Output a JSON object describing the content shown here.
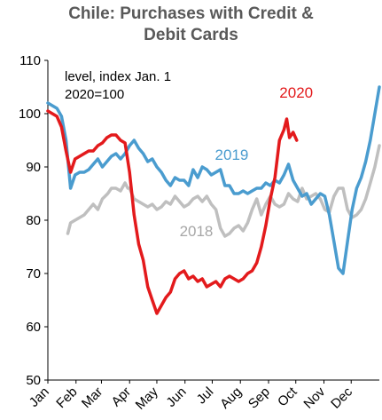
{
  "chart_data": {
    "type": "line",
    "title_lines": [
      "Chile: Purchases with Credit &",
      "Debit Cards"
    ],
    "annotation_lines": [
      "level, index Jan. 1",
      "2020=100"
    ],
    "ylim": [
      50,
      110
    ],
    "yticks": [
      50,
      60,
      70,
      80,
      90,
      100,
      110
    ],
    "xlim": [
      0,
      365
    ],
    "categories": [
      "Jan",
      "Feb",
      "Mar",
      "Apr",
      "May",
      "Jun",
      "Jul",
      "Aug",
      "Sep",
      "Oct",
      "Nov",
      "Dec"
    ],
    "month_start_days": [
      0,
      31,
      59,
      90,
      120,
      151,
      181,
      212,
      243,
      273,
      304,
      334
    ],
    "series": [
      {
        "name": "2018",
        "color": "#bfbfbf",
        "x": [
          22,
          25,
          30,
          35,
          40,
          45,
          50,
          55,
          60,
          63,
          66,
          70,
          75,
          80,
          85,
          88,
          90,
          95,
          100,
          105,
          110,
          115,
          120,
          125,
          130,
          135,
          140,
          145,
          150,
          155,
          160,
          165,
          170,
          175,
          180,
          185,
          190,
          195,
          200,
          205,
          210,
          215,
          220,
          225,
          230,
          235,
          240,
          245,
          250,
          255,
          260,
          265,
          270,
          275,
          280,
          285,
          290,
          295,
          300,
          305,
          310,
          315,
          320,
          325,
          330,
          335,
          340,
          345,
          350,
          355,
          360,
          365
        ],
        "y": [
          77.5,
          79.5,
          80,
          80.5,
          81,
          82,
          83,
          82,
          84,
          84.5,
          85,
          86,
          86,
          85.5,
          87,
          86,
          86,
          84,
          83.5,
          83,
          82.5,
          83,
          82,
          82.5,
          83.5,
          83,
          84.5,
          83.5,
          82.5,
          83,
          84,
          84.5,
          83.5,
          84.5,
          83,
          82,
          78.5,
          77,
          77.5,
          78.5,
          79,
          78,
          79.5,
          82,
          84,
          81,
          83,
          84.5,
          83,
          82.5,
          83,
          85,
          84,
          83.5,
          86,
          84,
          84.5,
          85,
          84,
          82,
          81.5,
          84.5,
          86,
          86,
          82,
          80.5,
          81,
          82,
          84,
          87,
          90,
          94
        ]
      },
      {
        "name": "2019",
        "color": "#4a9ccf",
        "x": [
          0,
          5,
          10,
          15,
          20,
          25,
          30,
          35,
          40,
          45,
          50,
          55,
          60,
          65,
          70,
          75,
          80,
          85,
          90,
          95,
          100,
          105,
          110,
          115,
          120,
          125,
          130,
          135,
          140,
          145,
          150,
          155,
          160,
          165,
          170,
          175,
          180,
          185,
          190,
          195,
          200,
          205,
          210,
          215,
          220,
          225,
          230,
          235,
          240,
          245,
          250,
          255,
          260,
          265,
          270,
          275,
          280,
          285,
          290,
          295,
          300,
          305,
          310,
          315,
          320,
          325,
          330,
          335,
          340,
          345,
          350,
          355,
          360,
          365
        ],
        "y": [
          102,
          101.5,
          101,
          99.5,
          95,
          86,
          88.5,
          89,
          89,
          89.5,
          90.5,
          91.5,
          90,
          91,
          92,
          92.5,
          91.5,
          92.5,
          94,
          95,
          93.5,
          92.5,
          91,
          91.5,
          90,
          89,
          87.5,
          86.5,
          88,
          87.5,
          87.5,
          86.5,
          89.5,
          88,
          90,
          89.5,
          88.5,
          89,
          89.5,
          86.5,
          86.5,
          85,
          85,
          85.5,
          85,
          85.5,
          86,
          86,
          87,
          86.5,
          87.5,
          87,
          88.5,
          90.5,
          87.5,
          86,
          84.5,
          85,
          83,
          84,
          85,
          84.5,
          81,
          76,
          71,
          70,
          76,
          82,
          86,
          88,
          91,
          95,
          100,
          105
        ]
      },
      {
        "name": "2020",
        "color": "#e31a1c",
        "x": [
          0,
          5,
          10,
          15,
          20,
          25,
          30,
          35,
          40,
          45,
          50,
          55,
          60,
          65,
          70,
          75,
          80,
          85,
          90,
          95,
          100,
          105,
          110,
          115,
          120,
          125,
          130,
          135,
          140,
          145,
          150,
          155,
          160,
          165,
          170,
          175,
          180,
          185,
          190,
          195,
          200,
          205,
          210,
          215,
          220,
          225,
          230,
          235,
          240,
          245,
          250,
          255,
          260,
          263,
          266,
          270,
          274
        ],
        "y": [
          100.5,
          100,
          99.5,
          97.5,
          93,
          89,
          91.5,
          92,
          92.5,
          93,
          93,
          94,
          94.5,
          95.5,
          96,
          96,
          95,
          94.5,
          89,
          81,
          75.5,
          72.5,
          67.5,
          65,
          62.5,
          64,
          65.5,
          66.5,
          69,
          70,
          70.5,
          69,
          69.5,
          68.5,
          69,
          67.5,
          68,
          68.5,
          67.5,
          69,
          69.5,
          69,
          68.5,
          69,
          70,
          70.5,
          72,
          75,
          79,
          84,
          88,
          95,
          97,
          99,
          95.5,
          96.5,
          95
        ]
      }
    ],
    "series_labels": [
      {
        "text": "2018",
        "x": 145,
        "y": 77,
        "color": "#a6a6a6"
      },
      {
        "text": "2019",
        "x": 184,
        "y": 91.3,
        "color": "#4a9ccf"
      },
      {
        "text": "2020",
        "x": 255,
        "y": 103,
        "color": "#e31a1c"
      }
    ],
    "grid": false,
    "legend": "none"
  }
}
